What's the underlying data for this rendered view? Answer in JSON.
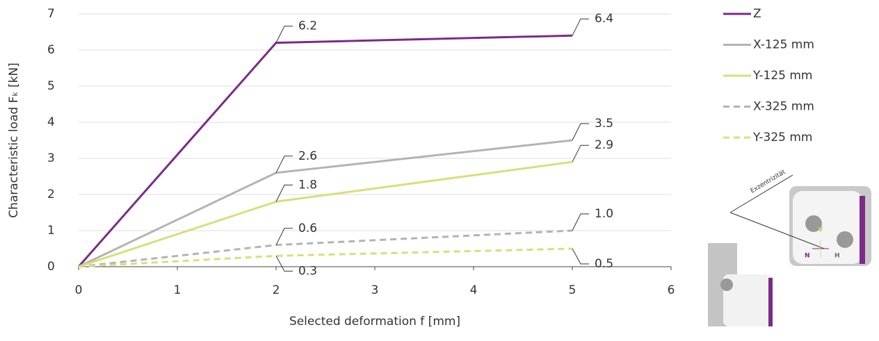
{
  "chart_data": {
    "type": "line",
    "x_label": "Selected deformation f [mm]",
    "y_label": "Characteristic load Fₖ [kN]",
    "x": [
      0,
      2,
      5
    ],
    "xlim": [
      0,
      6
    ],
    "xticks": [
      0,
      1,
      2,
      3,
      4,
      5,
      6
    ],
    "ylim": [
      0,
      7
    ],
    "yticks": [
      0,
      1,
      2,
      3,
      4,
      5,
      6,
      7
    ],
    "grid": true,
    "legend": "right",
    "series": [
      {
        "name": "Z",
        "color": "#7b2a8a",
        "dash": false,
        "values": [
          0,
          6.2,
          6.4
        ],
        "value_labels": [
          null,
          "6.2",
          "6.4"
        ]
      },
      {
        "name": "X-125 mm",
        "color": "#b3b3b3",
        "dash": false,
        "values": [
          0,
          2.6,
          3.5
        ],
        "value_labels": [
          null,
          "2.6",
          "3.5"
        ]
      },
      {
        "name": "Y-125 mm",
        "color": "#d8df78",
        "dash": false,
        "values": [
          0,
          1.8,
          2.9
        ],
        "value_labels": [
          null,
          "1.8",
          "2.9"
        ]
      },
      {
        "name": "X-325 mm",
        "color": "#b3b3b3",
        "dash": true,
        "values": [
          0,
          0.6,
          1.0
        ],
        "value_labels": [
          null,
          "0.6",
          "1.0"
        ]
      },
      {
        "name": "Y-325 mm",
        "color": "#d8df78",
        "dash": true,
        "values": [
          0,
          0.3,
          0.5
        ],
        "value_labels": [
          null,
          "0.3",
          "0.5"
        ]
      }
    ],
    "annotations": [
      "Exzentrizität",
      "V",
      "N",
      "H"
    ]
  }
}
